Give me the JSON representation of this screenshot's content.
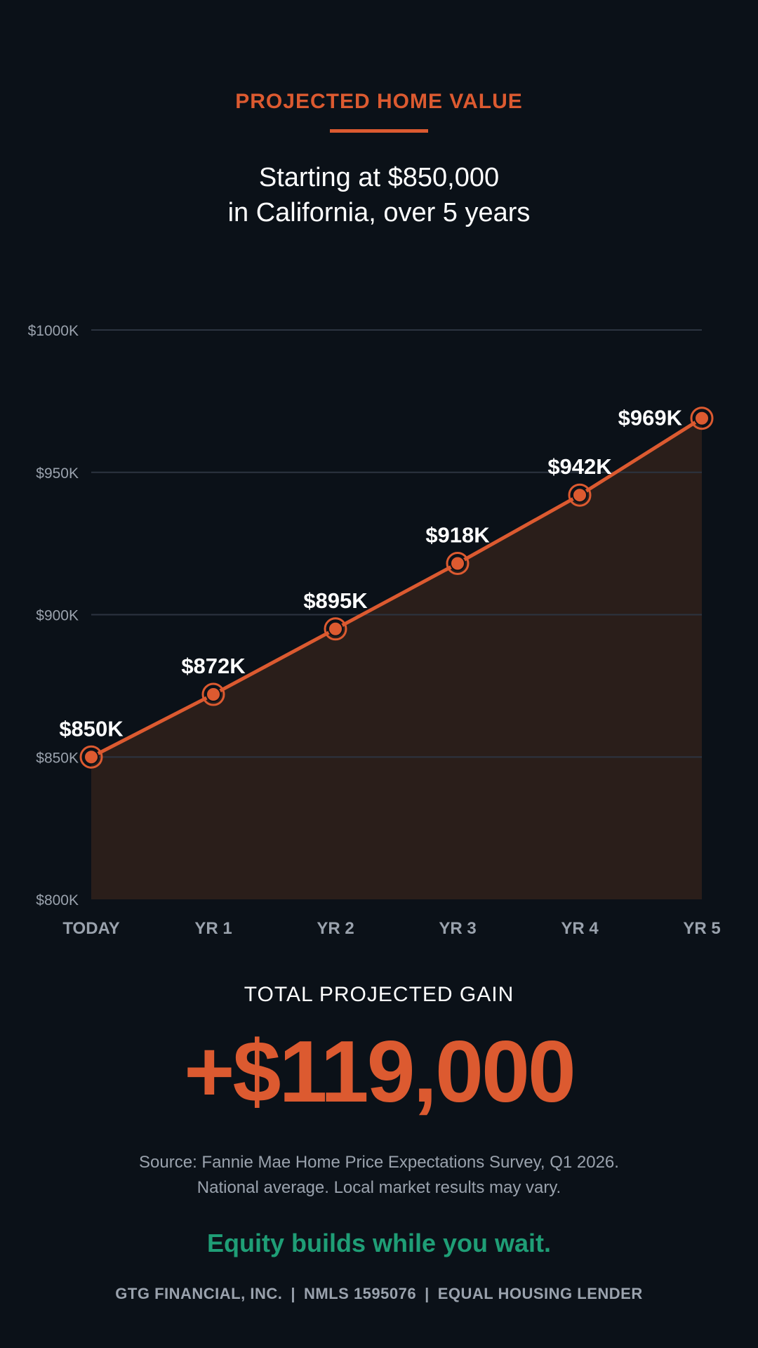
{
  "header": {
    "eyebrow": "PROJECTED HOME VALUE",
    "subtitle_line1": "Starting at $850,000",
    "subtitle_line2": "in California, over 5 years"
  },
  "chart_data": {
    "type": "area",
    "categories": [
      "TODAY",
      "YR 1",
      "YR 2",
      "YR 3",
      "YR 4",
      "YR 5"
    ],
    "series": [
      {
        "values": [
          850,
          872,
          895,
          918,
          942,
          969
        ],
        "data_labels": [
          "$850K",
          "$872K",
          "$895K",
          "$918K",
          "$942K",
          "$969K"
        ]
      }
    ],
    "ylim": [
      800,
      1000
    ],
    "yticks": [
      800,
      850,
      900,
      950,
      1000
    ],
    "ytick_labels": [
      "$800K",
      "$850K",
      "$900K",
      "$950K",
      "$1000K"
    ],
    "grid": true,
    "title": "",
    "xlabel": "",
    "ylabel": ""
  },
  "summary": {
    "gain_label": "TOTAL PROJECTED GAIN",
    "gain_value": "+$119,000"
  },
  "source": {
    "line1": "Source: Fannie Mae Home Price Expectations Survey, Q1 2026.",
    "line2": "National average. Local market results may vary."
  },
  "tagline": "Equity builds while you wait.",
  "footer": {
    "company": "GTG FINANCIAL, INC.",
    "separator": "|",
    "nmls": "NMLS 1595076",
    "lender": "EQUAL HOUSING LENDER"
  },
  "colors": {
    "background": "#0b1118",
    "accent": "#dc5a30",
    "area_fill": "#2a1e1a",
    "gridline": "#2c3440",
    "tick_text": "#9aa2ad",
    "tagline": "#1f9e76"
  }
}
